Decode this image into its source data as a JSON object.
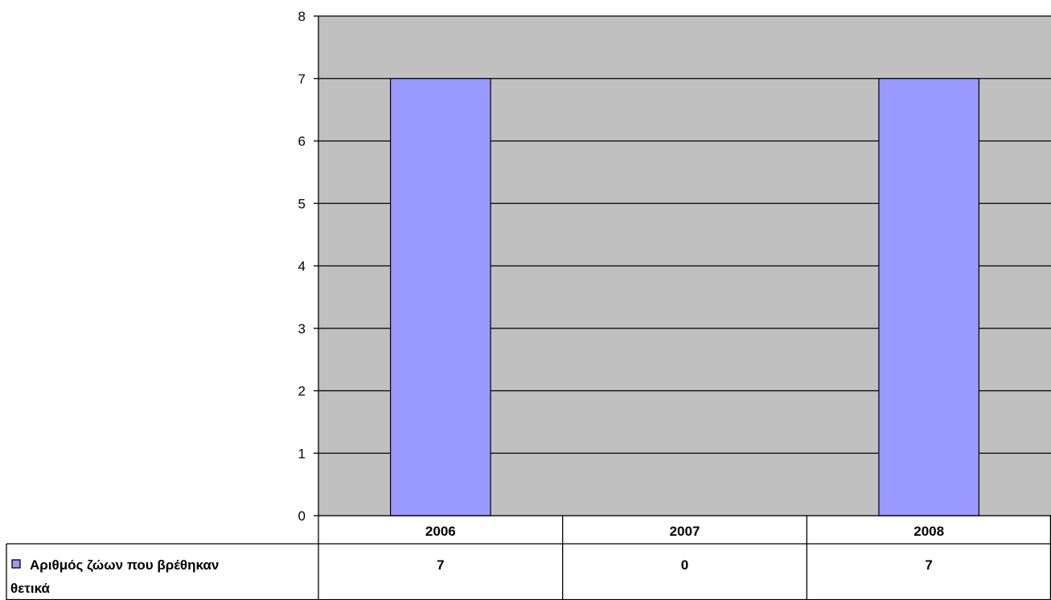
{
  "chart_data": {
    "type": "bar",
    "categories": [
      "2006",
      "2007",
      "2008"
    ],
    "series": [
      {
        "name": "Αριθμός ζώων που βρέθηκαν θετικά",
        "values": [
          7,
          0,
          7
        ],
        "color": "#9999ff"
      }
    ],
    "ylim": [
      0,
      8
    ],
    "yticks": [
      "0",
      "1",
      "2",
      "3",
      "4",
      "5",
      "6",
      "7",
      "8"
    ],
    "grid": true,
    "legend": "data-table",
    "plot_background": "#c0c0c0",
    "title": "",
    "xlabel": "",
    "ylabel": ""
  },
  "table": {
    "series_label_line1": "Αριθμός ζώων που βρέθηκαν",
    "series_label_line2": "θετικά",
    "values_text": [
      "7",
      "0",
      "7"
    ]
  }
}
